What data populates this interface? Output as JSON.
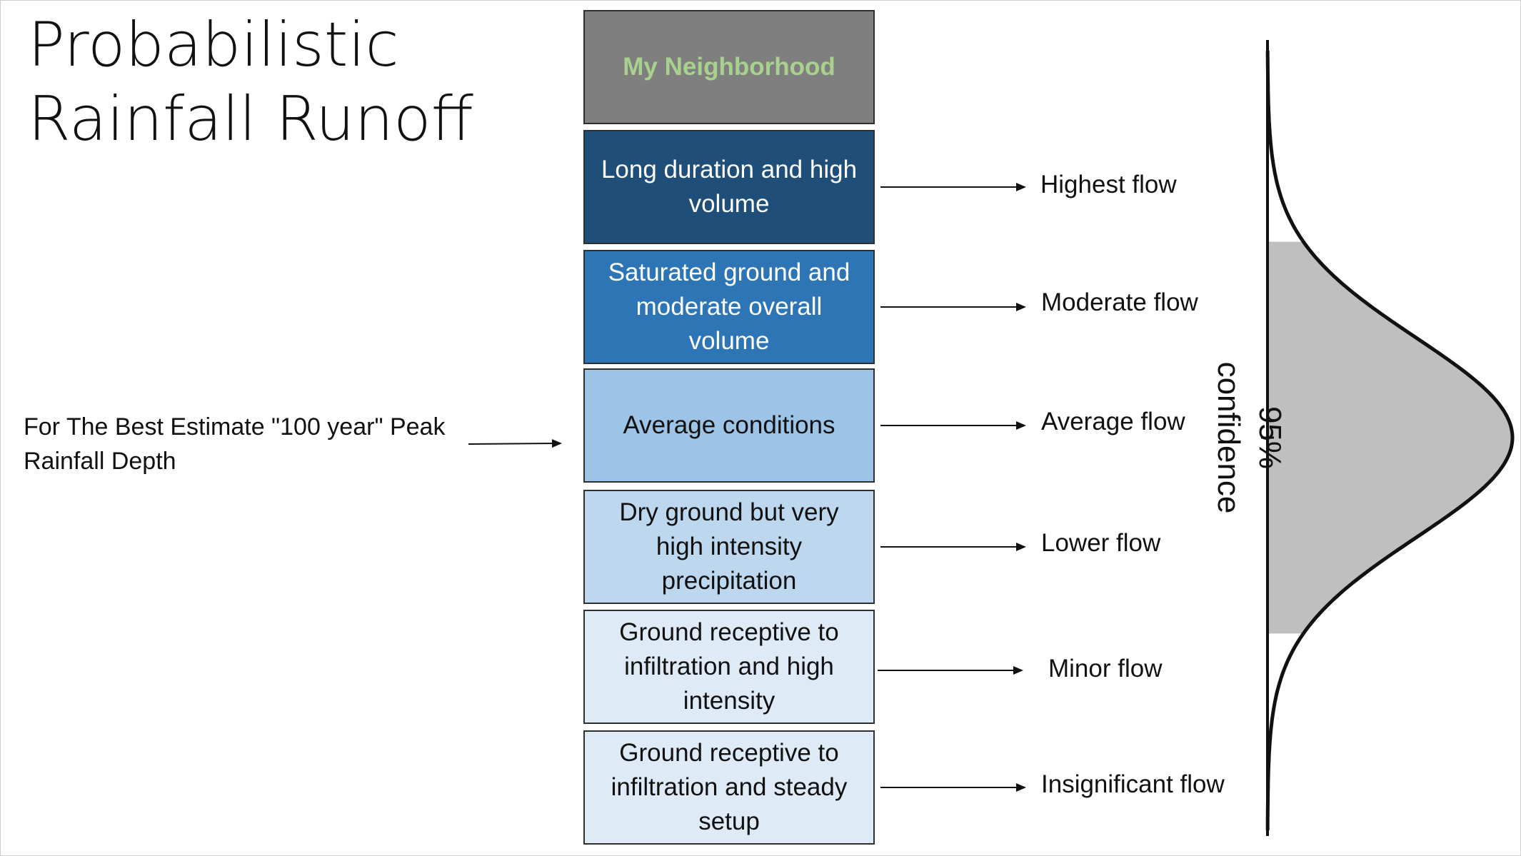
{
  "title": {
    "line1": "Probabilistic",
    "line2": "Rainfall Runoff"
  },
  "estimate_label": "For The Best Estimate \"100 year\" Peak Rainfall Depth",
  "header_box": "My Neighborhood",
  "scenarios": [
    {
      "condition": "Long duration and high volume",
      "flow": "Highest flow"
    },
    {
      "condition": "Saturated ground and moderate overall volume",
      "flow": "Moderate flow"
    },
    {
      "condition": "Average conditions",
      "flow": "Average flow"
    },
    {
      "condition": "Dry ground but very high intensity precipitation",
      "flow": "Lower flow"
    },
    {
      "condition": "Ground receptive to infiltration and high intensity",
      "flow": "Minor flow"
    },
    {
      "condition": "Ground receptive to infiltration and steady setup",
      "flow": "Insignificant flow"
    }
  ],
  "confidence": {
    "percent": "95%",
    "label": "confidence"
  },
  "colors": {
    "header_fill": "#7f7f7f",
    "header_text": "#a9d18e",
    "scenario_fills": [
      "#1f4e79",
      "#2e75b6",
      "#9dc3e6",
      "#bdd7ee",
      "#deebf7",
      "#deebf7"
    ],
    "confidence_fill": "#bfbfbf"
  }
}
